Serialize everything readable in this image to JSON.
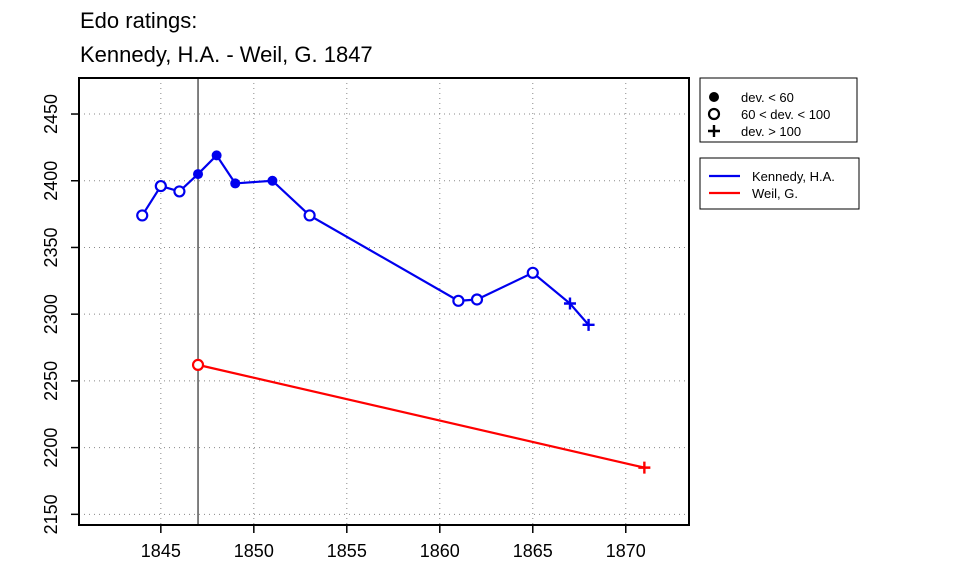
{
  "chart_data": {
    "type": "line",
    "title_lines": [
      "Edo ratings:",
      "Kennedy, H.A. - Weil, G. 1847"
    ],
    "xlabel": "",
    "ylabel": "",
    "xlim": [
      1840.6,
      1873.4
    ],
    "ylim": [
      2142,
      2477
    ],
    "x_ticks": [
      1845,
      1850,
      1855,
      1860,
      1865,
      1870
    ],
    "y_ticks": [
      2150,
      2200,
      2250,
      2300,
      2350,
      2400,
      2450
    ],
    "grid": true,
    "reference_line_x": 1847,
    "series": [
      {
        "name": "Kennedy, H.A.",
        "color": "#0000ee",
        "points": [
          {
            "x": 1844,
            "y": 2374,
            "marker": "circle"
          },
          {
            "x": 1845,
            "y": 2396,
            "marker": "circle"
          },
          {
            "x": 1846,
            "y": 2392,
            "marker": "circle"
          },
          {
            "x": 1847,
            "y": 2405,
            "marker": "dot"
          },
          {
            "x": 1848,
            "y": 2419,
            "marker": "dot"
          },
          {
            "x": 1849,
            "y": 2398,
            "marker": "dot"
          },
          {
            "x": 1851,
            "y": 2400,
            "marker": "dot"
          },
          {
            "x": 1853,
            "y": 2374,
            "marker": "circle"
          },
          {
            "x": 1861,
            "y": 2310,
            "marker": "circle"
          },
          {
            "x": 1862,
            "y": 2311,
            "marker": "circle"
          },
          {
            "x": 1865,
            "y": 2331,
            "marker": "circle"
          },
          {
            "x": 1867,
            "y": 2308,
            "marker": "plus"
          },
          {
            "x": 1868,
            "y": 2292,
            "marker": "plus"
          }
        ]
      },
      {
        "name": "Weil, G.",
        "color": "#ff0000",
        "points": [
          {
            "x": 1847,
            "y": 2262,
            "marker": "circle"
          },
          {
            "x": 1871,
            "y": 2185,
            "marker": "plus"
          }
        ]
      }
    ],
    "marker_legend": [
      {
        "marker": "dot",
        "label": "dev. < 60"
      },
      {
        "marker": "circle",
        "label": "60 < dev. < 100"
      },
      {
        "marker": "plus",
        "label": "dev. > 100"
      }
    ],
    "legend_position": "right"
  }
}
